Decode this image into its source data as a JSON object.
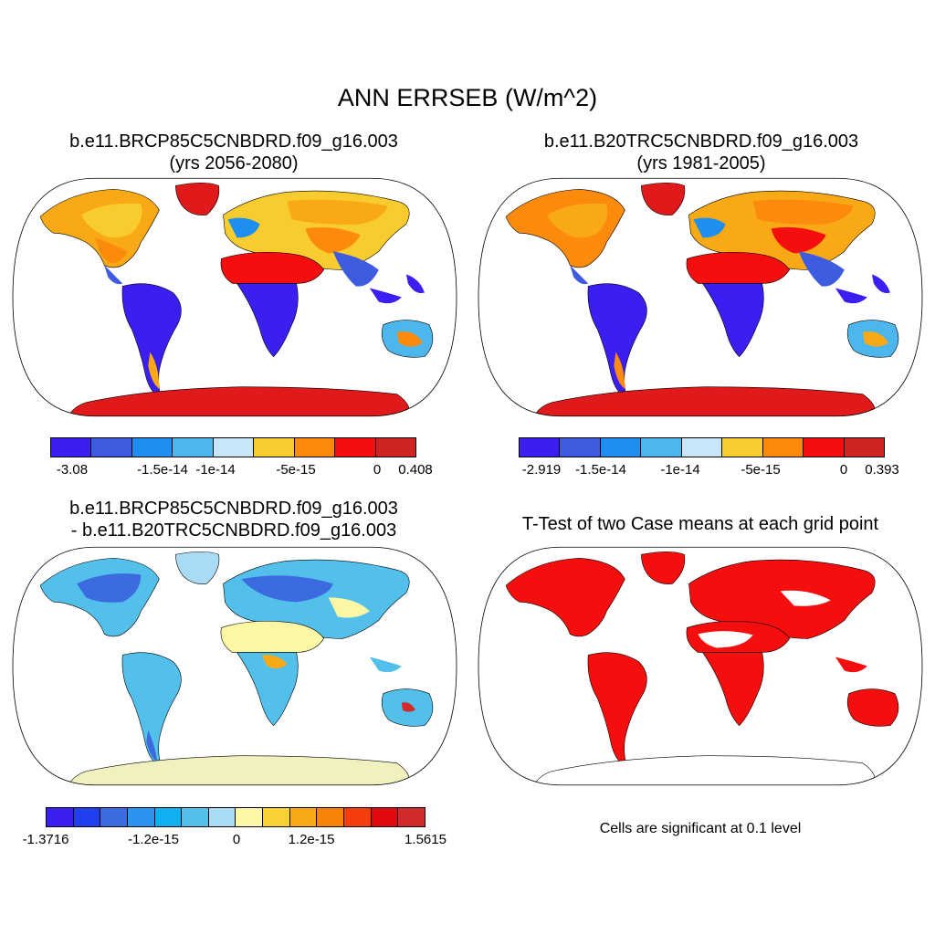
{
  "title": "ANN ERRSEB (W/m^2)",
  "panels": [
    {
      "title_line1": "b.e11.BRCP85C5CNBDRD.f09_g16.003",
      "title_line2": "(yrs 2056-2080)"
    },
    {
      "title_line1": "b.e11.B20TRC5CNBDRD.f09_g16.003",
      "title_line2": "(yrs 1981-2005)"
    },
    {
      "title_line1": "b.e11.BRCP85C5CNBDRD.f09_g16.003",
      "title_line2": "- b.e11.B20TRC5CNBDRD.f09_g16.003"
    },
    {
      "title_line1": "T-Test of two Case means at each grid point",
      "note": "Cells are significant at 0.1 level"
    }
  ],
  "colorbars": [
    {
      "colors": [
        "#3a1ff0",
        "#3d5ce0",
        "#1e8fee",
        "#4db6ec",
        "#c8e6f8",
        "#f8cb2e",
        "#fb8a0d",
        "#f50e0e",
        "#d02424"
      ],
      "labels": [
        "-3.08",
        "-1.5e-14",
        "-1e-14",
        "-5e-15",
        "0",
        "0.408"
      ]
    },
    {
      "colors": [
        "#3a1ff0",
        "#3d5ce0",
        "#1e8fee",
        "#4db6ec",
        "#c8e6f8",
        "#f8cb2e",
        "#fb8a0d",
        "#f50e0e",
        "#d02424"
      ],
      "labels": [
        "-2.919",
        "-1.5e-14",
        "-1e-14",
        "-5e-15",
        "0",
        "0.393"
      ]
    },
    {
      "colors": [
        "#3a1ff0",
        "#2040f0",
        "#3c6be0",
        "#2a94ef",
        "#10b0f0",
        "#52c0ea",
        "#a9dcf4",
        "#fbf7a4",
        "#f7d232",
        "#f8a915",
        "#f98309",
        "#f63d0c",
        "#e1080e",
        "#d12b2b"
      ],
      "labels": [
        "-1.3716",
        "-1.2e-15",
        "0",
        "1.2e-15",
        "1.5615"
      ]
    }
  ],
  "map_colors": {
    "ocean": "#ffffff",
    "panel1": {
      "south_america": "#3a1ff0",
      "africa_south": "#3a1ff0",
      "africa_north": "#f50e0e",
      "arabia": "#f50e0e",
      "antarctica": "#e0191a",
      "greenland": "#e0191a",
      "north_america": "#f8a915",
      "eurasia": "#f8cb2e",
      "tropics_asia": "#3d5ce0",
      "australia": "#4db6ec"
    },
    "panel3": {
      "land": "#52c0ea",
      "sahara": "#fbf7a4",
      "antarctica": "#f1f0bf",
      "boreal": "#3c6be0"
    },
    "panel4": {
      "significant": "#f50e0e"
    }
  }
}
